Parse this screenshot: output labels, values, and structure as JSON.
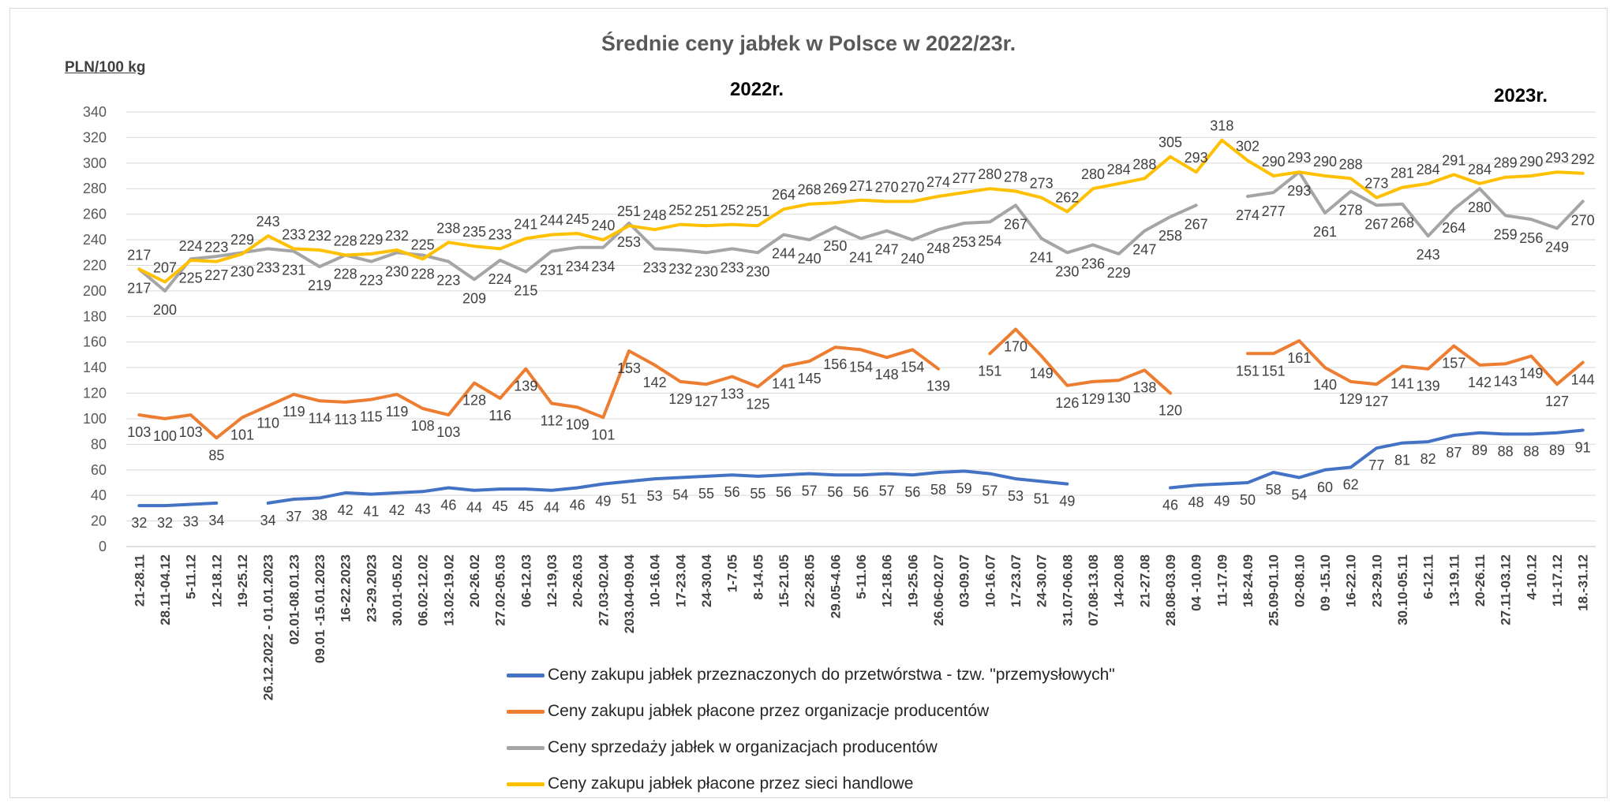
{
  "chart_data": {
    "type": "line",
    "title": "Średnie ceny jabłek w Polsce w 2022/23r.",
    "ylabel": "PLN/100 kg",
    "annotations": [
      "2022r.",
      "2023r."
    ],
    "ylim": [
      0,
      340
    ],
    "yticks": [
      0,
      20,
      40,
      60,
      80,
      100,
      120,
      140,
      160,
      180,
      200,
      220,
      240,
      260,
      280,
      300,
      320,
      340
    ],
    "grid": true,
    "legend_position": "bottom",
    "categories": [
      "21-28.11",
      "28.11-04.12",
      "5-11.12",
      "12-18.12",
      "19-25.12",
      "26.12.2022 - 01.01.2023",
      "02.01-08.01.23",
      "09.01 -15.01.2023",
      "16-22.2023",
      "23-29.2023",
      "30.01-05.02",
      "06.02-12.02",
      "13.02-19.02",
      "20-26.02",
      "27.02-05.03",
      "06-12.03",
      "12-19,03",
      "20-26.03",
      "27.03-02.04",
      "203.04-09.04",
      "10-16.04",
      "17-23.04",
      "24-30.04",
      "1-7.05",
      "8-14.05",
      "15-21.05",
      "22-28.05",
      "29.05-4.06",
      "5-11.06",
      "12-18.06",
      "19-25.06",
      "26.06-02.07",
      "03-09.07",
      "10-16.07",
      "17-23.07",
      "24-30.07",
      "31.07-06.08",
      "07.08-13.08",
      "14-20.08",
      "21-27.08",
      "28.08-03.09",
      "04 -10.09",
      "11-17.09",
      "18-24.09",
      "25.09-01.10",
      "02-08.10",
      "09 -15.10",
      "16-22.10",
      "23-29.10",
      "30.10-05.11",
      "6-12.11",
      "13-19.11",
      "20-26.11",
      "27.11-03.12",
      "4-10.12",
      "11-17.12",
      "18.-31.12"
    ],
    "series": [
      {
        "name": "Ceny zakupu jabłek przeznaczonych do przetwórstwa - tzw. \"przemysłowych\"",
        "color": "#4472c4",
        "values": [
          32,
          32,
          33,
          34,
          null,
          34,
          37,
          38,
          42,
          41,
          42,
          43,
          46,
          44,
          45,
          45,
          44,
          46,
          49,
          51,
          53,
          54,
          55,
          56,
          55,
          56,
          57,
          56,
          56,
          57,
          56,
          58,
          59,
          57,
          53,
          51,
          49,
          null,
          null,
          null,
          46,
          48,
          49,
          50,
          58,
          54,
          60,
          62,
          77,
          81,
          82,
          87,
          89,
          88,
          88,
          89,
          91
        ]
      },
      {
        "name": "Ceny zakupu jabłek płacone przez organizacje  producentów",
        "color": "#ed7d31",
        "values": [
          103,
          100,
          103,
          85,
          101,
          110,
          119,
          114,
          113,
          115,
          119,
          108,
          103,
          128,
          116,
          139,
          112,
          109,
          101,
          153,
          142,
          129,
          127,
          133,
          125,
          141,
          145,
          156,
          154,
          148,
          154,
          139,
          null,
          151,
          170,
          149,
          126,
          129,
          130,
          138,
          120,
          null,
          null,
          151,
          151,
          161,
          140,
          129,
          127,
          141,
          139,
          157,
          142,
          143,
          149,
          127,
          144
        ]
      },
      {
        "name": "Ceny sprzedaży jabłek w organizacjach  producentów",
        "color": "#a5a5a5",
        "values": [
          217,
          200,
          225,
          227,
          230,
          233,
          231,
          219,
          228,
          223,
          230,
          228,
          223,
          209,
          224,
          215,
          231,
          234,
          234,
          253,
          233,
          232,
          230,
          233,
          230,
          244,
          240,
          250,
          241,
          247,
          240,
          248,
          253,
          254,
          267,
          241,
          230,
          236,
          229,
          247,
          258,
          267,
          null,
          274,
          277,
          293,
          261,
          278,
          267,
          268,
          243,
          264,
          280,
          259,
          256,
          249,
          270
        ]
      },
      {
        "name": "Ceny zakupu jabłek płacone przez sieci handlowe",
        "color": "#ffc000",
        "values": [
          217,
          207,
          224,
          223,
          229,
          243,
          233,
          232,
          228,
          229,
          232,
          225,
          238,
          235,
          233,
          241,
          244,
          245,
          240,
          251,
          248,
          252,
          251,
          252,
          251,
          264,
          268,
          269,
          271,
          270,
          270,
          274,
          277,
          280,
          278,
          273,
          262,
          280,
          284,
          288,
          305,
          293,
          318,
          302,
          290,
          293,
          290,
          288,
          273,
          281,
          284,
          291,
          284,
          289,
          290,
          293,
          292
        ]
      }
    ]
  }
}
